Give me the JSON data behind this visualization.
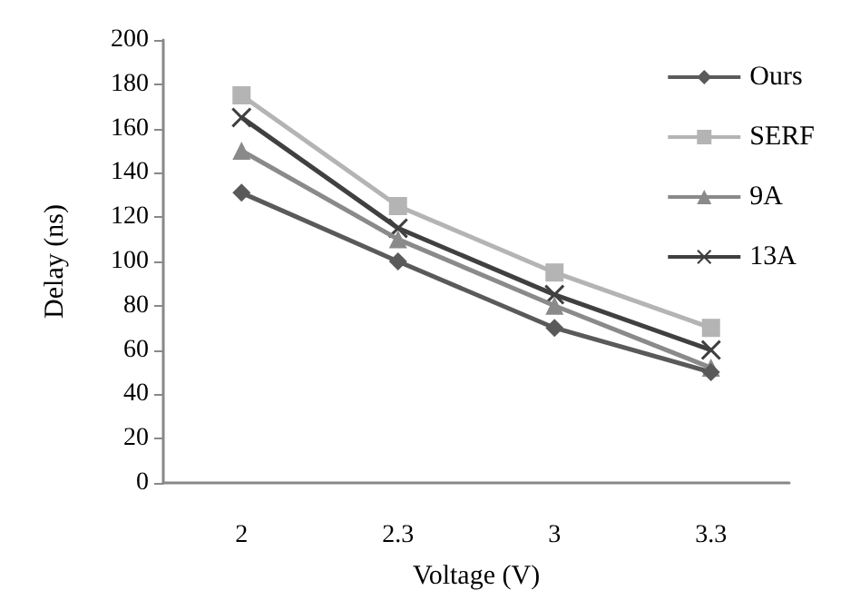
{
  "chart_data": {
    "type": "line",
    "xlabel": "Voltage (V)",
    "ylabel": "Delay (ns)",
    "categories": [
      "2",
      "2.3",
      "3",
      "3.3"
    ],
    "series": [
      {
        "name": "Ours",
        "color": "#5a5a5a",
        "marker": "diamond",
        "values": [
          131,
          100,
          70,
          50
        ]
      },
      {
        "name": "SERF",
        "color": "#b4b4b4",
        "marker": "square",
        "values": [
          175,
          125,
          95,
          70
        ]
      },
      {
        "name": "9A",
        "color": "#8a8a8a",
        "marker": "triangle",
        "values": [
          150,
          110,
          80,
          52
        ]
      },
      {
        "name": "13A",
        "color": "#404040",
        "marker": "cross",
        "values": [
          165,
          115,
          85,
          60
        ]
      }
    ],
    "ylim": [
      0,
      200
    ],
    "yticks": [
      0,
      20,
      40,
      60,
      80,
      100,
      120,
      140,
      160,
      180,
      200
    ],
    "grid": false,
    "legend": "top right"
  }
}
